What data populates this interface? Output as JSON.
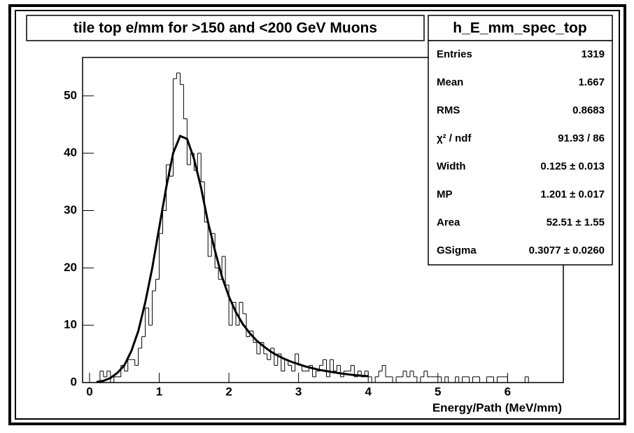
{
  "chart_data": {
    "type": "histogram",
    "title": "tile top e/mm for >150 and <200 GeV Muons",
    "x_label": "Energy/Path (MeV/mm)",
    "color": "#000000",
    "bins": [
      -0.1,
      -0.05,
      0,
      0.05,
      0.1,
      0.15,
      0.2,
      0.25,
      0.3,
      0.35,
      0.4,
      0.45,
      0.5,
      0.55,
      0.6,
      0.65,
      0.7,
      0.75,
      0.8,
      0.85,
      0.9,
      0.95,
      1,
      1.05,
      1.1,
      1.15,
      1.2,
      1.25,
      1.3,
      1.35,
      1.4,
      1.45,
      1.5,
      1.55,
      1.6,
      1.65,
      1.7,
      1.75,
      1.8,
      1.85,
      1.9,
      1.95,
      2,
      2.05,
      2.1,
      2.15,
      2.2,
      2.25,
      2.3,
      2.35,
      2.4,
      2.45,
      2.5,
      2.55,
      2.6,
      2.65,
      2.7,
      2.75,
      2.8,
      2.85,
      2.9,
      2.95,
      3,
      3.05,
      3.1,
      3.15,
      3.2,
      3.25,
      3.3,
      3.35,
      3.4,
      3.45,
      3.5,
      3.55,
      3.6,
      3.65,
      3.7,
      3.75,
      3.8,
      3.85,
      3.9,
      3.95,
      4,
      4.05,
      4.1,
      4.15,
      4.2,
      4.25,
      4.3,
      4.35,
      4.4,
      4.45,
      4.5,
      4.55,
      4.6,
      4.65,
      4.7,
      4.75,
      4.8,
      4.85,
      4.9,
      4.95,
      5,
      5.05,
      5.1,
      5.15,
      5.2,
      5.25,
      5.3,
      5.35,
      5.4,
      5.45,
      5.5,
      5.55,
      5.6,
      5.65,
      5.7,
      5.75,
      5.8,
      5.85,
      5.9,
      5.95,
      6,
      6.05,
      6.1,
      6.15,
      6.2,
      6.25,
      6.3,
      6.35,
      6.4,
      6.45,
      6.5,
      6.55,
      6.6,
      6.65,
      6.7,
      6.75,
      6.8
    ],
    "values": [
      0,
      0,
      0,
      0,
      0,
      2,
      1,
      2,
      0,
      1,
      1,
      3,
      2,
      4,
      4,
      3,
      6,
      8,
      13,
      10,
      16,
      18,
      26,
      30,
      38,
      36,
      53,
      54,
      52,
      46,
      38,
      40,
      37,
      40,
      35,
      28,
      22,
      26,
      20,
      18,
      22,
      17,
      10,
      14,
      10,
      14,
      12,
      8,
      9,
      7,
      5,
      7,
      5,
      4,
      6,
      3,
      5,
      2,
      4,
      3,
      2,
      5,
      3,
      2,
      2,
      3,
      1,
      2,
      3,
      4,
      1,
      4,
      2,
      3,
      1,
      2,
      2,
      3,
      1,
      2,
      1,
      2,
      1,
      0,
      1,
      2,
      3,
      1,
      1,
      0,
      1,
      1,
      2,
      1,
      2,
      1,
      0,
      1,
      2,
      1,
      1,
      1,
      1,
      0,
      1,
      0,
      0,
      1,
      0,
      1,
      1,
      0,
      1,
      1,
      0,
      0,
      1,
      1,
      0,
      1,
      1,
      1,
      0,
      0,
      0,
      0,
      0,
      1,
      0,
      0,
      0,
      0,
      0,
      0,
      0,
      0,
      0,
      0
    ],
    "fit": {
      "color": "#000000",
      "x": [
        0.1,
        0.2,
        0.3,
        0.4,
        0.5,
        0.6,
        0.7,
        0.8,
        0.9,
        1,
        1.1,
        1.2,
        1.3,
        1.4,
        1.5,
        1.6,
        1.7,
        1.8,
        1.9,
        2,
        2.1,
        2.2,
        2.3,
        2.4,
        2.5,
        2.6,
        2.7,
        2.8,
        2.9,
        3,
        3.1,
        3.2,
        3.3,
        3.4,
        3.5,
        3.6,
        3.7,
        3.8,
        3.9,
        4
      ],
      "values": [
        0.1,
        0.3,
        0.8,
        1.7,
        3,
        5.5,
        9,
        14,
        20,
        27,
        34,
        40,
        43,
        42.5,
        39,
        34,
        28,
        23,
        18.5,
        15,
        12.3,
        10.2,
        8.6,
        7.3,
        6.3,
        5.4,
        4.7,
        4.1,
        3.6,
        3.2,
        2.8,
        2.5,
        2.2,
        2,
        1.8,
        1.6,
        1.45,
        1.3,
        1.2,
        1.1
      ]
    },
    "xlim": [
      -0.1,
      6.8
    ],
    "xticks": [
      0,
      1,
      2,
      3,
      4,
      5,
      6
    ],
    "ylim": [
      0,
      56.7
    ],
    "yticks": [
      0,
      10,
      20,
      30,
      40,
      50
    ],
    "stats_box": {
      "title": "h_E_mm_spec_top",
      "rows": [
        [
          "Entries",
          "1319"
        ],
        [
          "Mean",
          "1.667"
        ],
        [
          "RMS",
          "0.8683"
        ],
        [
          "χ² / ndf",
          "91.93 / 86"
        ],
        [
          "Width",
          "0.125 ± 0.013"
        ],
        [
          "MP",
          "1.201 ± 0.017"
        ],
        [
          "Area",
          "52.51 ± 1.55"
        ],
        [
          "GSigma",
          "0.3077 ± 0.0260"
        ]
      ]
    }
  }
}
